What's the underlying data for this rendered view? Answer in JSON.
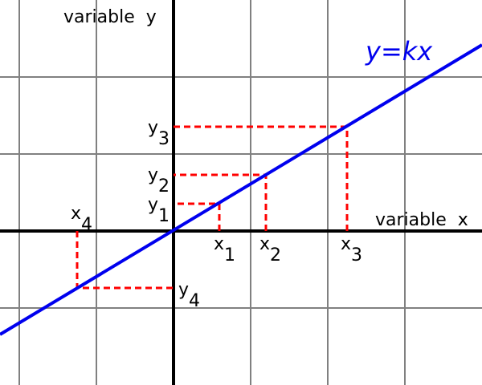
{
  "labels": {
    "x_axis": "variable  x",
    "y_axis": "variable  y",
    "equation": "y=kx"
  },
  "points": [
    {
      "x_letter": "x",
      "x_sub": "1",
      "y_letter": "y",
      "y_sub": "1"
    },
    {
      "x_letter": "x",
      "x_sub": "2",
      "y_letter": "y",
      "y_sub": "2"
    },
    {
      "x_letter": "x",
      "x_sub": "3",
      "y_letter": "y",
      "y_sub": "3"
    },
    {
      "x_letter": "x",
      "x_sub": "4",
      "y_letter": "y",
      "y_sub": "4"
    }
  ],
  "colors": {
    "line": "#0000ee",
    "guides": "#ff0000",
    "grid": "#808080",
    "axes": "#000000"
  }
}
